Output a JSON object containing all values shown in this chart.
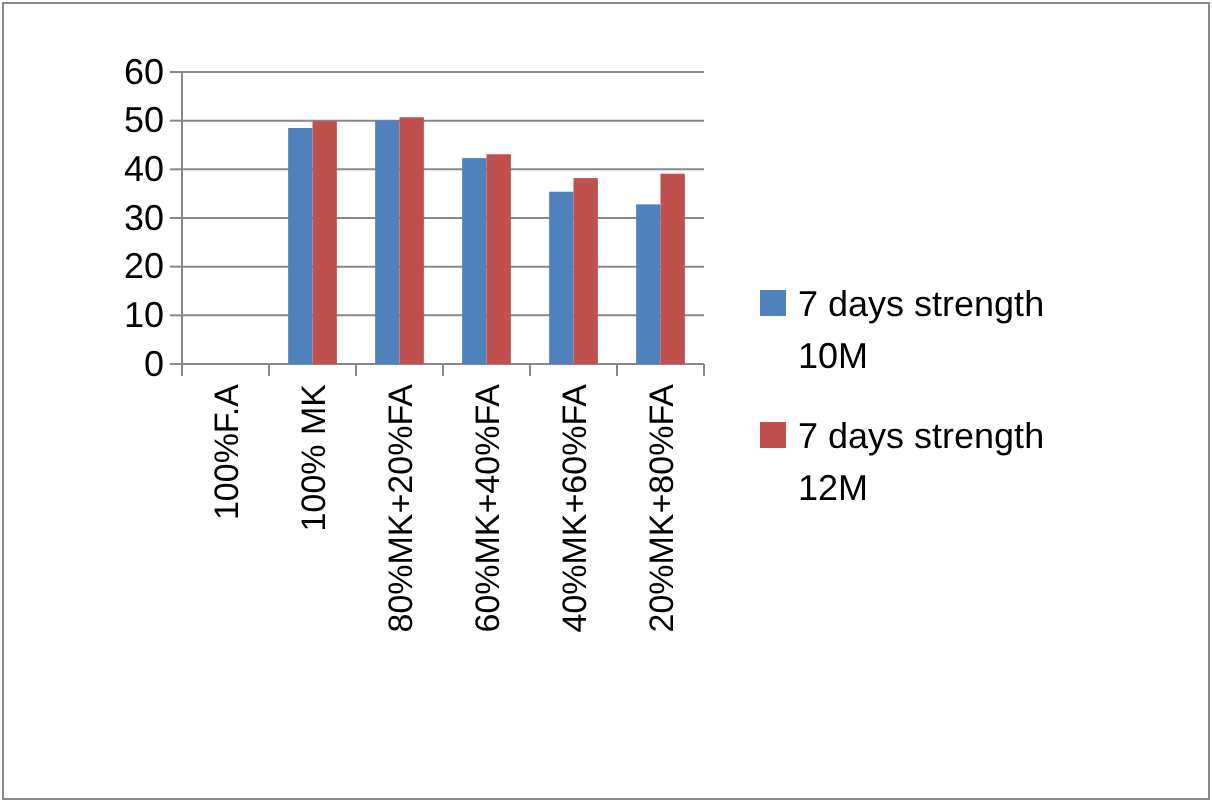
{
  "chart_data": {
    "type": "bar",
    "categories": [
      "100%F.A",
      "100% MK",
      "80%MK+20%FA",
      "60%MK+40%FA",
      "40%MK+60%FA",
      "20%MK+80%FA"
    ],
    "series": [
      {
        "name": "7 days strength 10M",
        "color": "#4f81bd",
        "values": [
          null,
          48.5,
          50,
          42.3,
          35.4,
          32.8
        ]
      },
      {
        "name": "7 days strength 12M",
        "color": "#c0504d",
        "values": [
          null,
          49.9,
          50.7,
          43.1,
          38.2,
          39.1
        ]
      }
    ],
    "ylim": [
      0,
      60
    ],
    "yticks": [
      0,
      10,
      20,
      30,
      40,
      50,
      60
    ],
    "grid": "y",
    "legend": "right"
  }
}
